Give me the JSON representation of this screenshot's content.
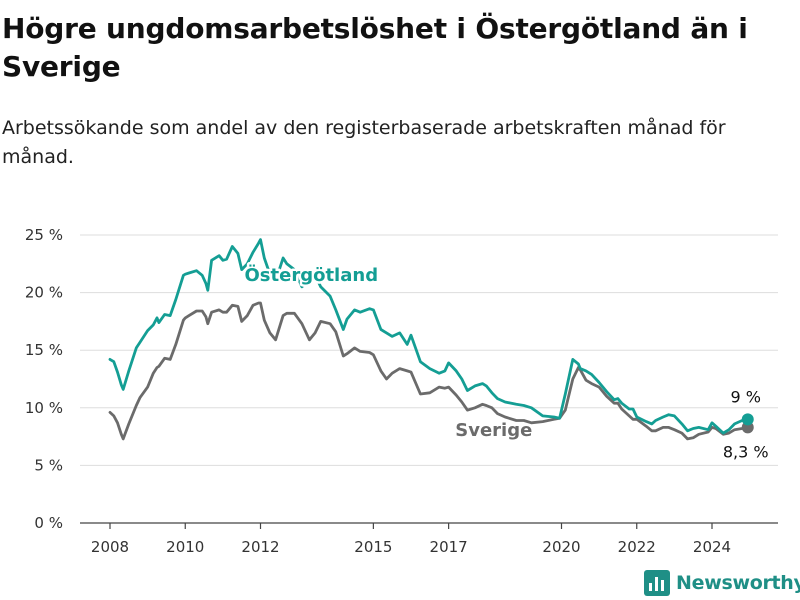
{
  "title": "Högre ungdomsarbetslöshet i Östergötland än i Sverige",
  "subtitle": "Arbetssökande som andel av den registerbaserade arbetskraften månad för månad.",
  "logo_text": "Newsworthy",
  "colors": {
    "ostergotland": "#149e94",
    "sverige": "#6b6b6b",
    "grid": "#dddddd",
    "axis": "#444444",
    "logo": "#1f8f86"
  },
  "icons": {
    "logo": "newsworthy-bar-chart-icon"
  },
  "chart_data": {
    "type": "line",
    "ylim": [
      0,
      25
    ],
    "xlim": [
      2007.6,
      2025.5
    ],
    "grid": "horizontal",
    "y_ticks": [
      0,
      5,
      10,
      15,
      20,
      25
    ],
    "y_tick_labels": [
      "0 %",
      "5 %",
      "10 %",
      "15 %",
      "20 %",
      "25 %"
    ],
    "x_ticks": [
      2008,
      2010,
      2012,
      2015,
      2017,
      2020,
      2022,
      2024
    ],
    "x_tick_labels": [
      "2008",
      "2010",
      "2012",
      "2015",
      "2017",
      "2020",
      "2022",
      "2024"
    ],
    "series": [
      {
        "name": "Östergötland",
        "end_label": "9 %",
        "x": [
          2008.0,
          2008.1,
          2008.2,
          2008.3,
          2008.35,
          2008.5,
          2008.7,
          2008.8,
          2009.0,
          2009.15,
          2009.25,
          2009.3,
          2009.45,
          2009.6,
          2009.75,
          2009.95,
          2010.0,
          2010.1,
          2010.3,
          2010.45,
          2010.55,
          2010.6,
          2010.7,
          2010.9,
          2011.0,
          2011.1,
          2011.25,
          2011.4,
          2011.5,
          2011.65,
          2011.8,
          2011.95,
          2012.0,
          2012.1,
          2012.25,
          2012.4,
          2012.6,
          2012.7,
          2012.9,
          2013.1,
          2013.3,
          2013.45,
          2013.6,
          2013.85,
          2014.0,
          2014.2,
          2014.3,
          2014.5,
          2014.65,
          2014.9,
          2015.0,
          2015.2,
          2015.35,
          2015.5,
          2015.7,
          2015.9,
          2016.0,
          2016.25,
          2016.5,
          2016.75,
          2016.9,
          2017.0,
          2017.2,
          2017.35,
          2017.5,
          2017.7,
          2017.9,
          2018.0,
          2018.15,
          2018.3,
          2018.5,
          2018.8,
          2019.0,
          2019.2,
          2019.5,
          2019.8,
          2019.95,
          2020.1,
          2020.3,
          2020.45,
          2020.5,
          2020.65,
          2020.8,
          2021.0,
          2021.2,
          2021.4,
          2021.5,
          2021.6,
          2021.8,
          2021.9,
          2022.0,
          2022.25,
          2022.4,
          2022.5,
          2022.7,
          2022.85,
          2023.0,
          2023.2,
          2023.35,
          2023.5,
          2023.65,
          2023.9,
          2024.0,
          2024.1,
          2024.3,
          2024.45,
          2024.6,
          2024.8,
          2024.95
        ],
        "values": [
          14.2,
          14.0,
          13.1,
          12.0,
          11.6,
          13.2,
          15.2,
          15.7,
          16.7,
          17.2,
          17.8,
          17.4,
          18.1,
          18.0,
          19.4,
          21.5,
          21.6,
          21.7,
          21.9,
          21.5,
          20.8,
          20.2,
          22.8,
          23.2,
          22.8,
          22.9,
          24.0,
          23.4,
          22.0,
          22.5,
          23.5,
          24.3,
          24.6,
          23.0,
          21.6,
          21.0,
          23.0,
          22.5,
          22.0,
          20.5,
          21.0,
          21.5,
          20.5,
          19.7,
          18.5,
          16.8,
          17.7,
          18.5,
          18.3,
          18.6,
          18.5,
          16.8,
          16.5,
          16.2,
          16.5,
          15.5,
          16.3,
          14.0,
          13.4,
          13.0,
          13.2,
          13.9,
          13.2,
          12.5,
          11.5,
          11.9,
          12.1,
          11.9,
          11.3,
          10.8,
          10.5,
          10.3,
          10.2,
          10.0,
          9.3,
          9.2,
          9.1,
          11.2,
          14.2,
          13.8,
          13.4,
          13.2,
          12.9,
          12.2,
          11.4,
          10.7,
          10.8,
          10.4,
          9.9,
          9.9,
          9.2,
          8.8,
          8.6,
          8.9,
          9.2,
          9.4,
          9.3,
          8.6,
          8.0,
          8.2,
          8.3,
          8.1,
          8.7,
          8.4,
          7.8,
          8.1,
          8.6,
          8.9,
          9.0
        ]
      },
      {
        "name": "Sverige",
        "end_label": "8,3 %",
        "x": [
          2008.0,
          2008.1,
          2008.2,
          2008.3,
          2008.35,
          2008.5,
          2008.7,
          2008.8,
          2009.0,
          2009.15,
          2009.25,
          2009.3,
          2009.45,
          2009.6,
          2009.75,
          2009.95,
          2010.0,
          2010.1,
          2010.3,
          2010.45,
          2010.55,
          2010.6,
          2010.7,
          2010.9,
          2011.0,
          2011.1,
          2011.25,
          2011.4,
          2011.5,
          2011.65,
          2011.8,
          2011.95,
          2012.0,
          2012.1,
          2012.25,
          2012.4,
          2012.6,
          2012.7,
          2012.9,
          2013.1,
          2013.3,
          2013.45,
          2013.6,
          2013.85,
          2014.0,
          2014.2,
          2014.3,
          2014.5,
          2014.65,
          2014.9,
          2015.0,
          2015.2,
          2015.35,
          2015.5,
          2015.7,
          2015.9,
          2016.0,
          2016.25,
          2016.5,
          2016.75,
          2016.9,
          2017.0,
          2017.2,
          2017.35,
          2017.5,
          2017.7,
          2017.9,
          2018.0,
          2018.15,
          2018.3,
          2018.5,
          2018.8,
          2019.0,
          2019.2,
          2019.5,
          2019.8,
          2019.95,
          2020.1,
          2020.3,
          2020.45,
          2020.5,
          2020.65,
          2020.8,
          2021.0,
          2021.2,
          2021.4,
          2021.5,
          2021.6,
          2021.8,
          2021.9,
          2022.0,
          2022.25,
          2022.4,
          2022.5,
          2022.7,
          2022.85,
          2023.0,
          2023.2,
          2023.35,
          2023.5,
          2023.65,
          2023.9,
          2024.0,
          2024.1,
          2024.3,
          2024.45,
          2024.6,
          2024.8,
          2024.95
        ],
        "values": [
          9.6,
          9.3,
          8.7,
          7.7,
          7.3,
          8.6,
          10.2,
          10.9,
          11.8,
          13.0,
          13.5,
          13.6,
          14.3,
          14.2,
          15.5,
          17.6,
          17.8,
          18.0,
          18.4,
          18.4,
          17.9,
          17.3,
          18.3,
          18.5,
          18.3,
          18.3,
          18.9,
          18.8,
          17.5,
          18.0,
          18.9,
          19.1,
          19.1,
          17.6,
          16.5,
          15.9,
          18.0,
          18.2,
          18.2,
          17.3,
          15.9,
          16.5,
          17.5,
          17.3,
          16.6,
          14.5,
          14.7,
          15.2,
          14.9,
          14.8,
          14.6,
          13.2,
          12.5,
          13.0,
          13.4,
          13.2,
          13.1,
          11.2,
          11.3,
          11.8,
          11.7,
          11.8,
          11.1,
          10.5,
          9.8,
          10.0,
          10.3,
          10.2,
          10.0,
          9.5,
          9.2,
          8.9,
          8.9,
          8.7,
          8.8,
          9.0,
          9.1,
          9.8,
          12.5,
          13.5,
          13.3,
          12.4,
          12.1,
          11.8,
          11.0,
          10.4,
          10.4,
          9.9,
          9.3,
          9.0,
          9.0,
          8.4,
          8.0,
          8.0,
          8.3,
          8.3,
          8.1,
          7.8,
          7.3,
          7.4,
          7.7,
          7.9,
          8.3,
          8.2,
          7.7,
          7.8,
          8.1,
          8.2,
          8.3
        ]
      }
    ]
  }
}
